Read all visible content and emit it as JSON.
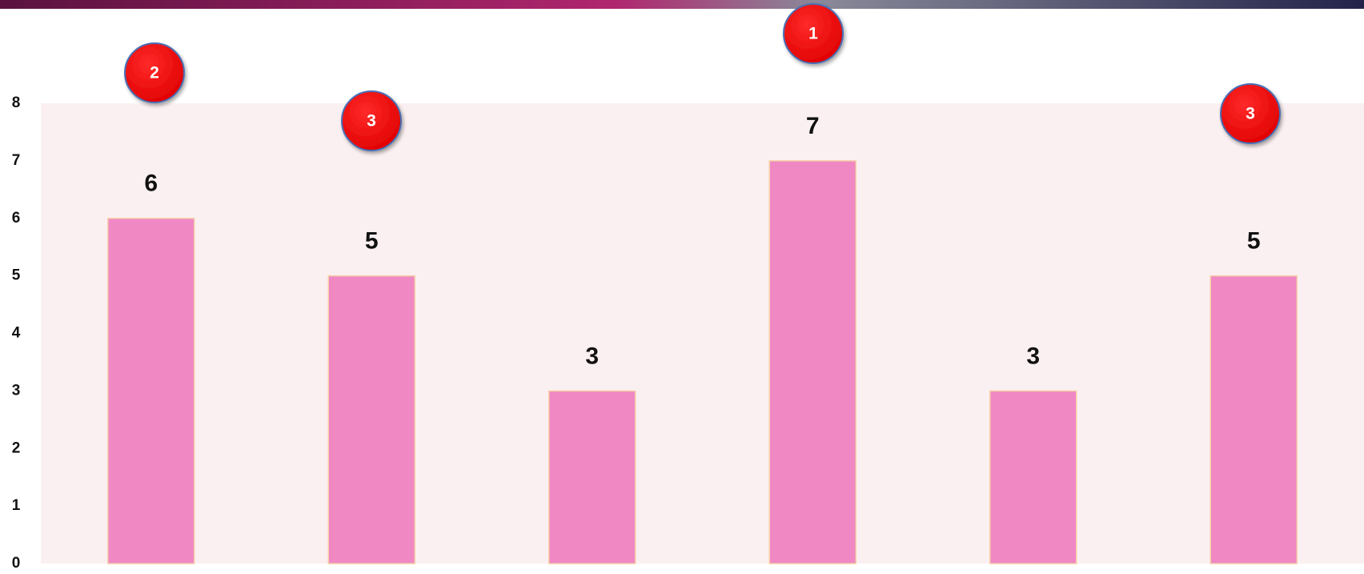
{
  "chart_data": {
    "type": "bar",
    "categories": [
      null,
      null,
      null,
      null,
      null,
      null
    ],
    "values": [
      6,
      5,
      3,
      7,
      3,
      5
    ],
    "color": "#f088c4",
    "ylim": [
      0,
      8
    ],
    "yticks": [
      0,
      1,
      2,
      3,
      4,
      5,
      6,
      7,
      8
    ],
    "grid": false
  },
  "badges": [
    2,
    3,
    1,
    3
  ]
}
